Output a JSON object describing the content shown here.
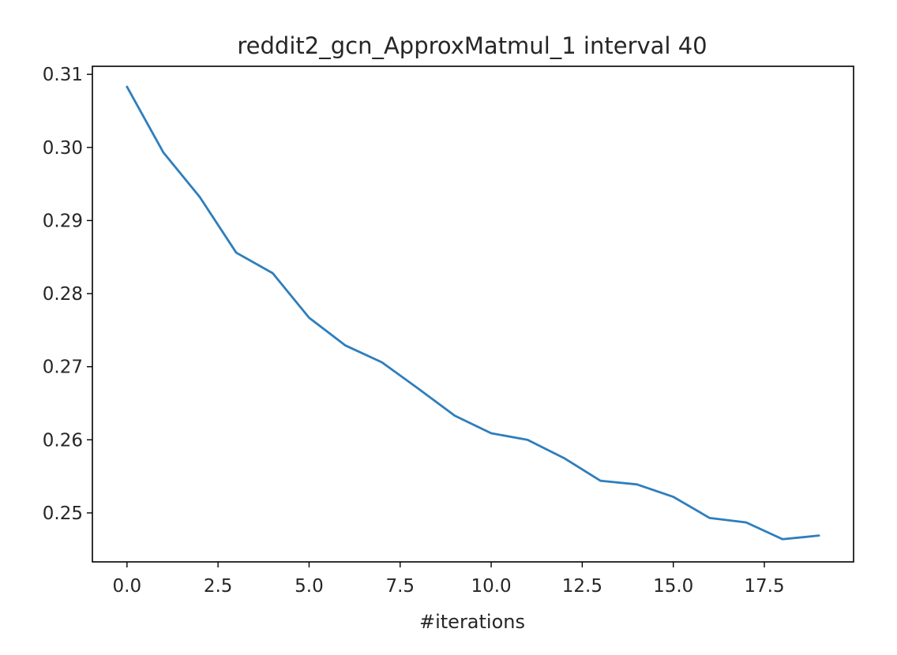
{
  "chart_data": {
    "type": "line",
    "title": "reddit2_gcn_ApproxMatmul_1 interval 40",
    "xlabel": "#iterations",
    "ylabel": "",
    "xlim": [
      -0.95,
      19.95
    ],
    "ylim": [
      0.2433,
      0.3111
    ],
    "xticks": [
      0.0,
      2.5,
      5.0,
      7.5,
      10.0,
      12.5,
      15.0,
      17.5
    ],
    "xtick_labels": [
      "0.0",
      "2.5",
      "5.0",
      "7.5",
      "10.0",
      "12.5",
      "15.0",
      "17.5"
    ],
    "yticks": [
      0.25,
      0.26,
      0.27,
      0.28,
      0.29,
      0.3,
      0.31
    ],
    "ytick_labels": [
      "0.25",
      "0.26",
      "0.27",
      "0.28",
      "0.29",
      "0.30",
      "0.31"
    ],
    "grid": false,
    "series": [
      {
        "color": "#2e7ebc",
        "x": [
          0,
          1,
          2,
          3,
          4,
          5,
          6,
          7,
          8,
          9,
          10,
          11,
          12,
          13,
          14,
          15,
          16,
          17,
          18,
          19
        ],
        "y": [
          0.3083,
          0.2993,
          0.2932,
          0.2856,
          0.2828,
          0.2767,
          0.2729,
          0.2706,
          0.267,
          0.2633,
          0.2609,
          0.26,
          0.2575,
          0.2544,
          0.2539,
          0.2522,
          0.2493,
          0.2487,
          0.2464,
          0.2469
        ]
      }
    ]
  }
}
